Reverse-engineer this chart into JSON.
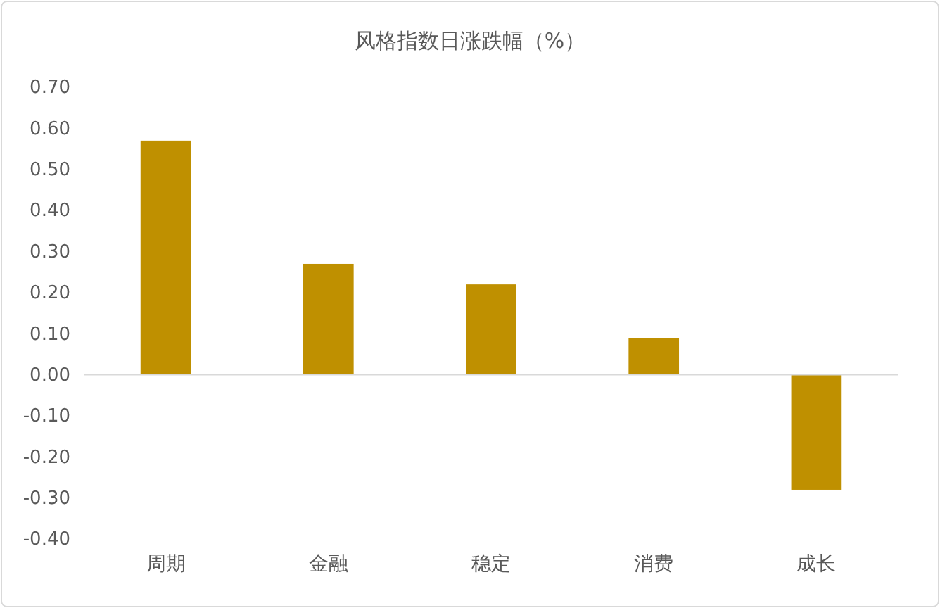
{
  "chart_data": {
    "type": "bar",
    "title": "风格指数日涨跌幅（%）",
    "categories": [
      "周期",
      "金融",
      "稳定",
      "消费",
      "成长"
    ],
    "values": [
      0.57,
      0.27,
      0.22,
      0.09,
      -0.28
    ],
    "color": "#bf9000",
    "ylim": [
      -0.4,
      0.7
    ],
    "yticks": [
      {
        "value": -0.4,
        "label": "-0.40"
      },
      {
        "value": -0.3,
        "label": "-0.30"
      },
      {
        "value": -0.2,
        "label": "-0.20"
      },
      {
        "value": -0.1,
        "label": "-0.10"
      },
      {
        "value": 0,
        "label": "0.00"
      },
      {
        "value": 0.1,
        "label": "0.10"
      },
      {
        "value": 0.2,
        "label": "0.20"
      },
      {
        "value": 0.3,
        "label": "0.30"
      },
      {
        "value": 0.4,
        "label": "0.40"
      },
      {
        "value": 0.5,
        "label": "0.50"
      },
      {
        "value": 0.6,
        "label": "0.60"
      },
      {
        "value": 0.7,
        "label": "0.70"
      }
    ],
    "stacked": false
  }
}
